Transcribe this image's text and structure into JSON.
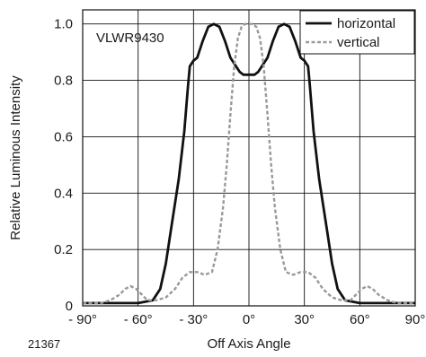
{
  "chart_data": {
    "type": "line",
    "part_label": "VLWR9430",
    "figure_number": "21367",
    "xlabel": "Off Axis Angle",
    "ylabel": "Relative Luminous Intensity",
    "xlim": [
      -90,
      90
    ],
    "ylim": [
      0,
      1.05
    ],
    "x_ticks": [
      -90,
      -60,
      -30,
      0,
      30,
      60,
      90
    ],
    "x_tick_labels": [
      "- 90°",
      "- 60°",
      "- 30°",
      "0°",
      "30°",
      "60°",
      "90°"
    ],
    "y_ticks": [
      0,
      0.2,
      0.4,
      0.6,
      0.8,
      1.0
    ],
    "y_tick_labels": [
      "0",
      "0.2",
      "0.4",
      "0.6",
      "0.8",
      "1.0"
    ],
    "grid": true,
    "legend_position": "top-right",
    "series": [
      {
        "name": "horizontal",
        "color": "#111111",
        "style": "solid",
        "x": [
          -90,
          -75,
          -60,
          -52,
          -48,
          -45,
          -42,
          -38,
          -35,
          -33,
          -32,
          -30,
          -28,
          -25,
          -22,
          -19,
          -16,
          -13,
          -10,
          -7,
          -5,
          -3,
          0,
          3,
          5,
          7,
          10,
          13,
          16,
          19,
          22,
          25,
          28,
          30,
          32,
          33,
          35,
          38,
          42,
          45,
          48,
          52,
          60,
          75,
          90
        ],
        "y": [
          0.01,
          0.01,
          0.01,
          0.02,
          0.06,
          0.15,
          0.28,
          0.45,
          0.62,
          0.78,
          0.85,
          0.87,
          0.88,
          0.94,
          0.99,
          1.0,
          0.99,
          0.94,
          0.88,
          0.85,
          0.83,
          0.82,
          0.82,
          0.82,
          0.83,
          0.85,
          0.88,
          0.94,
          0.99,
          1.0,
          0.99,
          0.94,
          0.88,
          0.87,
          0.85,
          0.78,
          0.62,
          0.45,
          0.28,
          0.15,
          0.06,
          0.02,
          0.01,
          0.01,
          0.01
        ]
      },
      {
        "name": "vertical",
        "color": "#999999",
        "style": "dashed",
        "x": [
          -90,
          -80,
          -75,
          -70,
          -67,
          -64,
          -61,
          -58,
          -55,
          -50,
          -45,
          -40,
          -36,
          -32,
          -28,
          -24,
          -20,
          -17,
          -14,
          -12,
          -10,
          -8,
          -6,
          -4,
          -2,
          0,
          2,
          4,
          6,
          8,
          10,
          12,
          14,
          17,
          20,
          24,
          28,
          32,
          36,
          40,
          45,
          50,
          55,
          58,
          61,
          64,
          67,
          70,
          75,
          80,
          90
        ],
        "y": [
          0.01,
          0.01,
          0.02,
          0.04,
          0.06,
          0.07,
          0.06,
          0.04,
          0.02,
          0.02,
          0.03,
          0.06,
          0.1,
          0.12,
          0.12,
          0.11,
          0.12,
          0.2,
          0.35,
          0.5,
          0.68,
          0.85,
          0.95,
          0.99,
          1.0,
          1.0,
          1.0,
          0.99,
          0.95,
          0.85,
          0.68,
          0.5,
          0.35,
          0.2,
          0.12,
          0.11,
          0.12,
          0.12,
          0.1,
          0.06,
          0.03,
          0.02,
          0.02,
          0.04,
          0.06,
          0.07,
          0.06,
          0.04,
          0.02,
          0.01,
          0.01
        ]
      }
    ]
  }
}
